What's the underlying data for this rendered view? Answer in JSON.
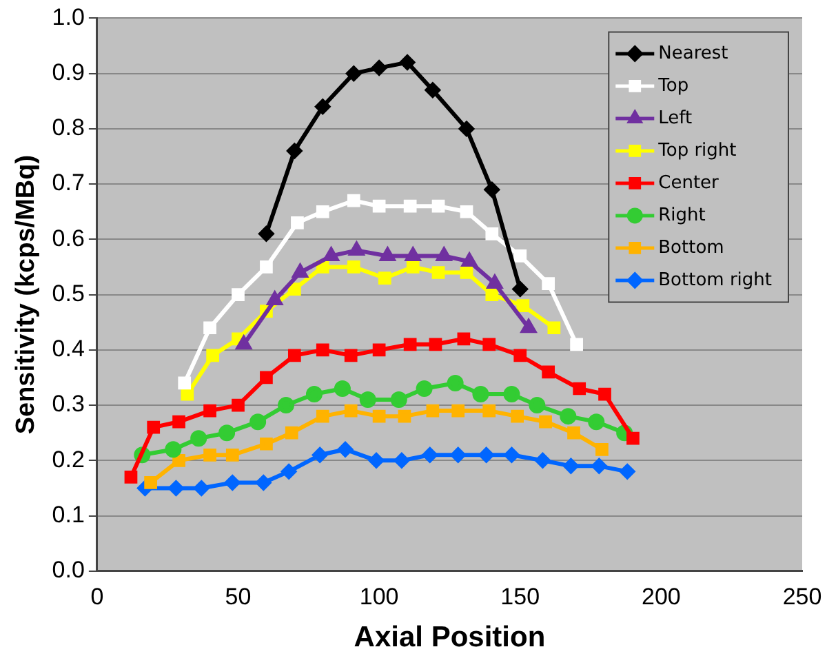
{
  "chart_data": {
    "type": "line",
    "xlabel": "Axial Position",
    "ylabel": "Sensitivity (kcps/MBq)",
    "xlim": [
      0,
      250
    ],
    "xticks": [
      0,
      50,
      100,
      150,
      200,
      250
    ],
    "ylim": [
      0,
      1
    ],
    "yticks": [
      {
        "value": 0,
        "label": "0.0"
      },
      {
        "value": 0.1,
        "label": "0.1"
      },
      {
        "value": 0.2,
        "label": "0.2"
      },
      {
        "value": 0.3,
        "label": "0.3"
      },
      {
        "value": 0.4,
        "label": "0.4"
      },
      {
        "value": 0.5,
        "label": "0.5"
      },
      {
        "value": 0.6,
        "label": "0.6"
      },
      {
        "value": 0.7,
        "label": "0.7"
      },
      {
        "value": 0.8,
        "label": "0.8"
      },
      {
        "value": 0.9,
        "label": "0.9"
      },
      {
        "value": 1,
        "label": "1.0"
      }
    ],
    "grid": "y",
    "legend": "top right",
    "line_style": "solid",
    "series": [
      {
        "name": "Nearest",
        "color": "#000000",
        "marker": "diamond",
        "x": [
          60,
          70,
          80,
          91,
          100,
          110,
          119,
          131,
          140,
          150
        ],
        "values": [
          0.61,
          0.76,
          0.84,
          0.9,
          0.91,
          0.92,
          0.87,
          0.8,
          0.69,
          0.51
        ]
      },
      {
        "name": "Top",
        "color": "#ffffff",
        "marker": "square",
        "x": [
          31,
          40,
          50,
          60,
          71,
          80,
          91,
          100,
          111,
          121,
          131,
          140,
          150,
          160,
          170
        ],
        "values": [
          0.34,
          0.44,
          0.5,
          0.55,
          0.63,
          0.65,
          0.67,
          0.66,
          0.66,
          0.66,
          0.65,
          0.61,
          0.57,
          0.52,
          0.41
        ]
      },
      {
        "name": "Left",
        "color": "#7030a0",
        "marker": "triangle",
        "x": [
          52,
          63,
          72,
          83,
          92,
          103,
          112,
          123,
          132,
          141,
          153
        ],
        "values": [
          0.41,
          0.49,
          0.54,
          0.57,
          0.58,
          0.57,
          0.57,
          0.57,
          0.56,
          0.52,
          0.44
        ]
      },
      {
        "name": "Top right",
        "color": "#ffff00",
        "marker": "square",
        "x": [
          32,
          41,
          50,
          60,
          70,
          80,
          91,
          102,
          112,
          121,
          131,
          140,
          151,
          162
        ],
        "values": [
          0.32,
          0.39,
          0.42,
          0.47,
          0.51,
          0.55,
          0.55,
          0.53,
          0.55,
          0.54,
          0.54,
          0.5,
          0.48,
          0.44
        ]
      },
      {
        "name": "Center",
        "color": "#ff0000",
        "marker": "square",
        "x": [
          12,
          20,
          29,
          40,
          50,
          60,
          70,
          80,
          90,
          100,
          111,
          120,
          130,
          139,
          150,
          160,
          171,
          180,
          190
        ],
        "values": [
          0.17,
          0.26,
          0.27,
          0.29,
          0.3,
          0.35,
          0.39,
          0.4,
          0.39,
          0.4,
          0.41,
          0.41,
          0.42,
          0.41,
          0.39,
          0.36,
          0.33,
          0.32,
          0.24
        ]
      },
      {
        "name": "Right",
        "color": "#33cc33",
        "marker": "circle",
        "x": [
          16,
          27,
          36,
          46,
          57,
          67,
          77,
          87,
          96,
          107,
          116,
          127,
          136,
          147,
          156,
          167,
          177,
          187
        ],
        "values": [
          0.21,
          0.22,
          0.24,
          0.25,
          0.27,
          0.3,
          0.32,
          0.33,
          0.31,
          0.31,
          0.33,
          0.34,
          0.32,
          0.32,
          0.3,
          0.28,
          0.27,
          0.25
        ]
      },
      {
        "name": "Bottom",
        "color": "#ffb300",
        "marker": "square",
        "x": [
          19,
          29,
          40,
          48,
          60,
          69,
          80,
          90,
          100,
          109,
          119,
          128,
          139,
          149,
          159,
          169,
          179
        ],
        "values": [
          0.16,
          0.2,
          0.21,
          0.21,
          0.23,
          0.25,
          0.28,
          0.29,
          0.28,
          0.28,
          0.29,
          0.29,
          0.29,
          0.28,
          0.27,
          0.25,
          0.22
        ]
      },
      {
        "name": "Bottom right",
        "color": "#0066ff",
        "marker": "diamond",
        "x": [
          17,
          28,
          37,
          48,
          59,
          68,
          79,
          88,
          99,
          108,
          118,
          128,
          138,
          147,
          158,
          168,
          178,
          188
        ],
        "values": [
          0.15,
          0.15,
          0.15,
          0.16,
          0.16,
          0.18,
          0.21,
          0.22,
          0.2,
          0.2,
          0.21,
          0.21,
          0.21,
          0.21,
          0.2,
          0.19,
          0.19,
          0.18
        ]
      }
    ]
  }
}
